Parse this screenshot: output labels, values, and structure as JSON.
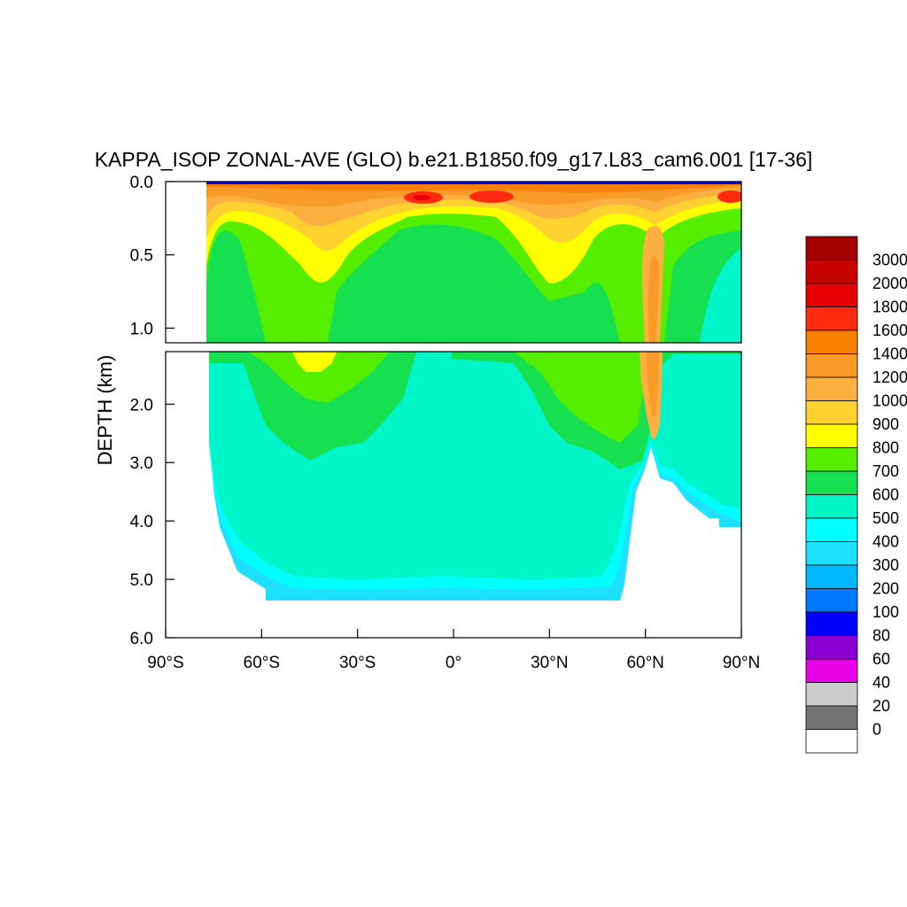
{
  "chart_data": {
    "type": "heatmap",
    "title": "KAPPA_ISOP ZONAL-AVE (GLO) b.e21.B1850.f09_g17.L83_cam6.001 [17-36]",
    "ylabel": "DEPTH (km)",
    "x_ticks": [
      "90°S",
      "60°S",
      "30°S",
      "0°",
      "30°N",
      "60°N",
      "90°N"
    ],
    "x_tick_values": [
      -90,
      -60,
      -30,
      0,
      30,
      60,
      90
    ],
    "xlim": [
      -90,
      90
    ],
    "upper_panel": {
      "ylim": [
        0,
        1.1
      ],
      "y_ticks": [
        "0.0",
        "0.5",
        "1.0"
      ],
      "y_tick_values": [
        0,
        0.5,
        1.0
      ]
    },
    "lower_panel": {
      "ylim": [
        1.1,
        6.0
      ],
      "y_ticks": [
        "2.0",
        "3.0",
        "4.0",
        "5.0",
        "6.0"
      ],
      "y_tick_values": [
        2,
        3,
        4,
        5,
        6
      ]
    },
    "colorbar": {
      "levels": [
        "3000",
        "2000",
        "1800",
        "1600",
        "1400",
        "1200",
        "1000",
        "900",
        "800",
        "700",
        "600",
        "500",
        "400",
        "300",
        "200",
        "100",
        "80",
        "60",
        "40",
        "20",
        "0"
      ],
      "colors": [
        "#a50000",
        "#c80000",
        "#e40000",
        "#ff2a10",
        "#f88000",
        "#fa9a28",
        "#fdb040",
        "#ffd230",
        "#ffff00",
        "#55ee00",
        "#16e050",
        "#00f5c8",
        "#00ffff",
        "#1ee0ff",
        "#00b8ff",
        "#0078ff",
        "#0000ff",
        "#8c00d4",
        "#e800e8",
        "#cccccc",
        "#737373",
        "#ffffff"
      ]
    },
    "grid": false,
    "legend": "right",
    "zonal_structure": {
      "upper_surface_max": 1600,
      "subtropical_core": {
        "lat": -45,
        "depth_km": [
          0.4,
          1.6
        ],
        "value": 800
      },
      "north_atlantic_core": {
        "lat": 62,
        "depth_km": [
          0.5,
          2.6
        ],
        "value": 1000
      },
      "deep_ocean": 500,
      "bottom_water": 400
    }
  }
}
